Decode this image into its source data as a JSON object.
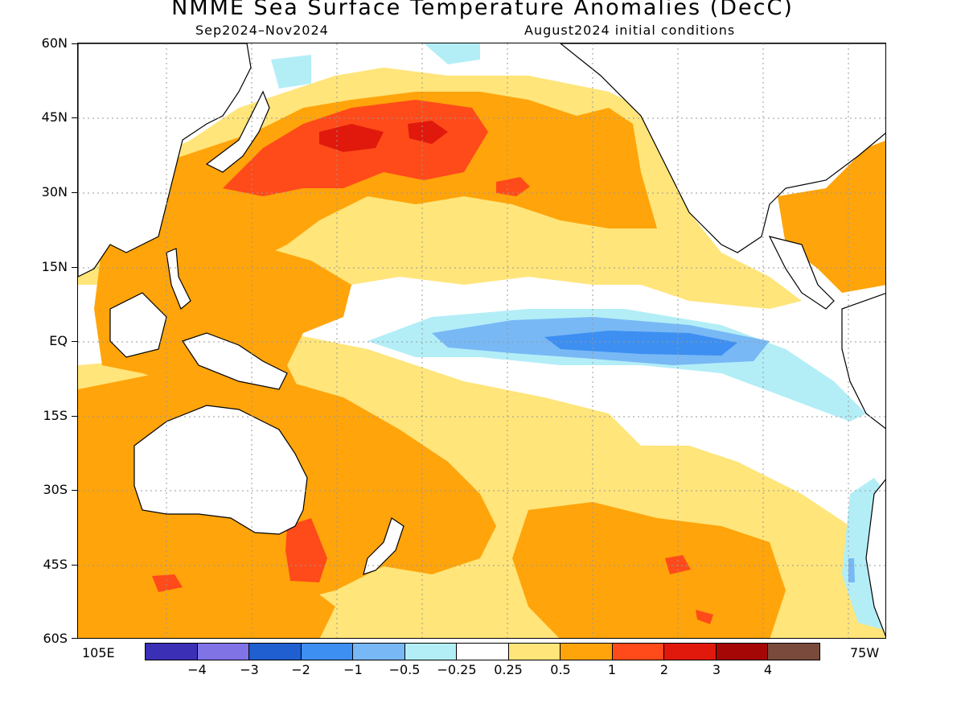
{
  "title": "NMME Sea Surface Temperature Anomalies (DecC)",
  "subtitle_left": "Sep2024–Nov2024",
  "subtitle_right": "August2024 initial conditions",
  "lat_labels": [
    "60N",
    "45N",
    "30N",
    "15N",
    "EQ",
    "15S",
    "30S",
    "45S",
    "60S"
  ],
  "lon_labels": {
    "left": "105E",
    "right": "75W"
  },
  "colorbar": {
    "colors": [
      "#3a2fb5",
      "#8073e6",
      "#1f5fd0",
      "#3d8ff2",
      "#78b8f5",
      "#b3eef7",
      "#ffffff",
      "#ffe57a",
      "#ffa40a",
      "#ff4a1a",
      "#e0190c",
      "#a50606",
      "#7a4a3c"
    ],
    "labels": [
      "−4",
      "−3",
      "−2",
      "−1",
      "−0.5",
      "−0.25",
      "0.25",
      "0.5",
      "1",
      "2",
      "3",
      "4"
    ]
  },
  "palette": {
    "light_orange": "#ffe57a",
    "orange": "#ffa40a",
    "red_orange": "#ff4a1a",
    "red": "#e0190c",
    "light_blue": "#b3eef7",
    "mid_blue": "#78b8f5",
    "blue": "#3d8ff2",
    "land": "#ffffff",
    "coast": "#000000",
    "grid": "#999999"
  }
}
